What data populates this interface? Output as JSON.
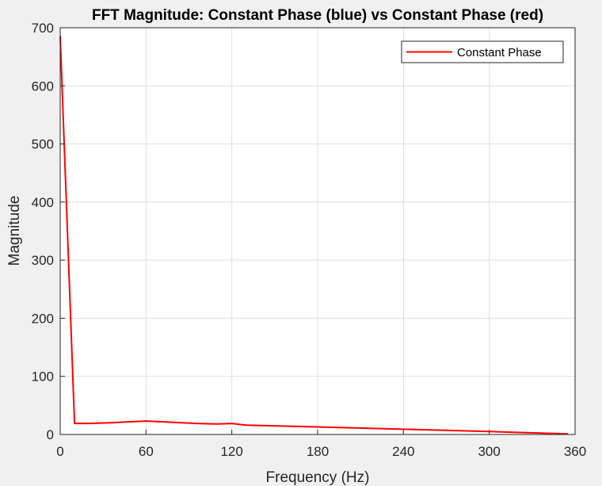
{
  "chart_data": {
    "type": "line",
    "title": "FFT Magnitude: Constant Phase (blue) vs Constant Phase (red)",
    "xlabel": "Frequency (Hz)",
    "ylabel": "Magnitude",
    "xlim": [
      0,
      360
    ],
    "ylim": [
      0,
      700
    ],
    "xticks": [
      "0",
      "60",
      "120",
      "180",
      "240",
      "300",
      "360"
    ],
    "yticks": [
      "0",
      "100",
      "200",
      "300",
      "400",
      "500",
      "600",
      "700"
    ],
    "grid": true,
    "legend_position": "top-right",
    "series": [
      {
        "name": "Constant Phase",
        "color": "#ff0000",
        "x": [
          0,
          10,
          20,
          35,
          50,
          60,
          70,
          85,
          100,
          110,
          120,
          130,
          180,
          240,
          300,
          355
        ],
        "y": [
          686,
          19,
          19,
          20,
          22,
          23,
          22,
          20,
          18.5,
          18,
          19,
          16,
          13,
          9,
          5,
          1
        ]
      }
    ]
  }
}
